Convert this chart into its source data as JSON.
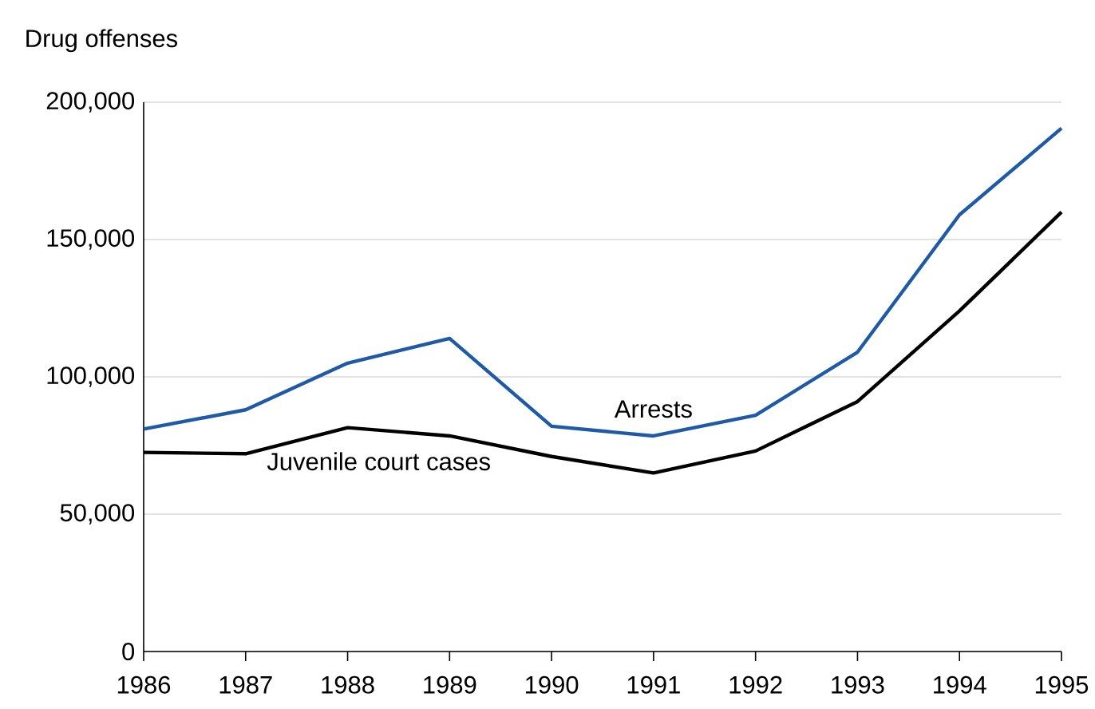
{
  "chart_data": {
    "type": "line",
    "ylabel": "Drug offenses",
    "x": [
      1986,
      1987,
      1988,
      1989,
      1990,
      1991,
      1992,
      1993,
      1994,
      1995
    ],
    "series": [
      {
        "name": "Arrests",
        "color": "#1f5aa6",
        "values": [
          81000,
          88000,
          105000,
          114000,
          82000,
          78500,
          86000,
          109000,
          159000,
          190500
        ]
      },
      {
        "name": "Juvenile court cases",
        "color": "#000000",
        "values": [
          72500,
          72000,
          81500,
          78500,
          71000,
          65000,
          73000,
          91000,
          124000,
          160000
        ]
      }
    ],
    "xlim": [
      1986,
      1995
    ],
    "xticks": [
      1986,
      1987,
      1988,
      1989,
      1990,
      1991,
      1992,
      1993,
      1994,
      1995
    ],
    "ylim": [
      0,
      200000
    ],
    "yticks": [
      0,
      {
        "value": 50000,
        "label": "50,000"
      },
      {
        "value": 100000,
        "label": "100,000"
      },
      {
        "value": 150000,
        "label": "150,000"
      },
      {
        "value": 200000,
        "label": "200,000"
      }
    ],
    "grid": "y",
    "legend": false,
    "marker": "none",
    "line_style": "solid"
  }
}
